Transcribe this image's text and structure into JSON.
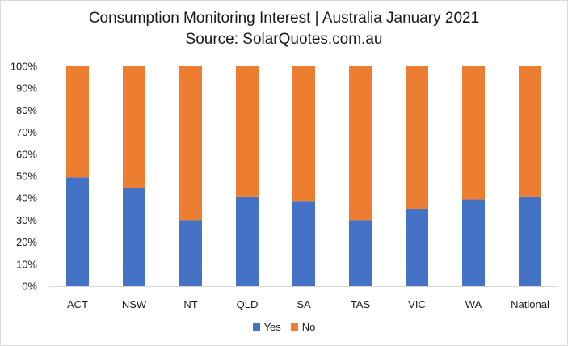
{
  "chart_data": {
    "type": "bar",
    "stacked": true,
    "title": "Consumption Monitoring Interest | Australia January 2021",
    "subtitle": "Source: SolarQuotes.com.au",
    "categories": [
      "ACT",
      "NSW",
      "NT",
      "QLD",
      "SA",
      "TAS",
      "VIC",
      "WA",
      "National"
    ],
    "series": [
      {
        "name": "Yes",
        "color": "#4472c4",
        "values": [
          49.5,
          44.5,
          30,
          40.5,
          38.5,
          30,
          35,
          39.5,
          40.5
        ]
      },
      {
        "name": "No",
        "color": "#ed7d31",
        "values": [
          50.5,
          55.5,
          70,
          59.5,
          61.5,
          70,
          65,
          60.5,
          59.5
        ]
      }
    ],
    "ylim": [
      0,
      100
    ],
    "yticks": [
      "0%",
      "10%",
      "20%",
      "30%",
      "40%",
      "50%",
      "60%",
      "70%",
      "80%",
      "90%",
      "100%"
    ],
    "grid": false,
    "legend": "bottom"
  }
}
